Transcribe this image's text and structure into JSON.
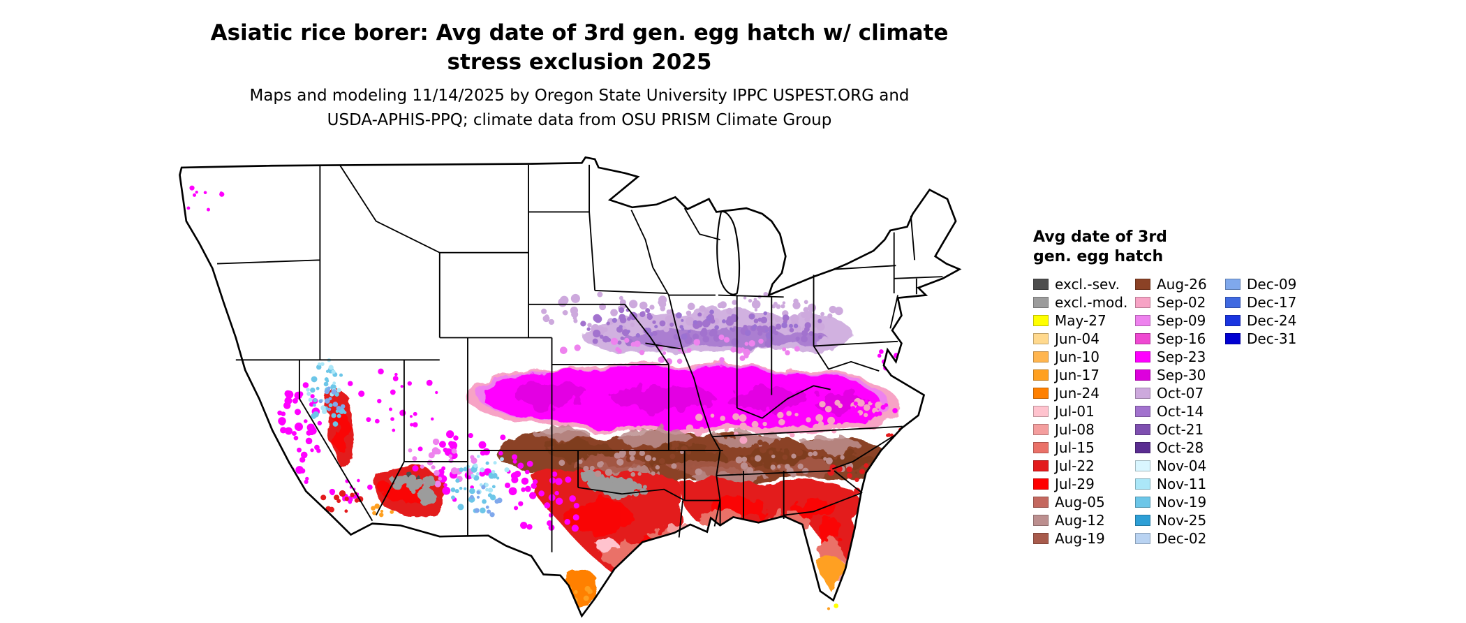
{
  "header": {
    "title_line1": "Asiatic rice borer: Avg date of 3rd gen. egg hatch w/ climate",
    "title_line2": "stress exclusion 2025",
    "subtitle_line1": "Maps and modeling 11/14/2025 by Oregon State University IPPC USPEST.ORG and",
    "subtitle_line2": "USDA-APHIS-PPQ; climate data from OSU PRISM Climate Group"
  },
  "legend": {
    "title_line1": "Avg date of 3rd",
    "title_line2": "gen. egg hatch",
    "columns": [
      {
        "items": [
          {
            "label": "excl.-sev.",
            "color": "#4D4D4D"
          },
          {
            "label": "excl.-mod.",
            "color": "#9C9C9C"
          },
          {
            "label": "May-27",
            "color": "#FFFF00"
          },
          {
            "label": "Jun-04",
            "color": "#FFD98E"
          },
          {
            "label": "Jun-10",
            "color": "#FFB54F"
          },
          {
            "label": "Jun-17",
            "color": "#FFA020"
          },
          {
            "label": "Jun-24",
            "color": "#FF8000"
          },
          {
            "label": "Jul-01",
            "color": "#FFC3CE"
          },
          {
            "label": "Jul-08",
            "color": "#F49E9E"
          },
          {
            "label": "Jul-15",
            "color": "#EA7168"
          },
          {
            "label": "Jul-22",
            "color": "#E31A1C"
          },
          {
            "label": "Jul-29",
            "color": "#FF0000"
          },
          {
            "label": "Aug-05",
            "color": "#C4685F"
          },
          {
            "label": "Aug-12",
            "color": "#BC8F8F"
          },
          {
            "label": "Aug-19",
            "color": "#A85B4C"
          }
        ]
      },
      {
        "items": [
          {
            "label": "Aug-26",
            "color": "#8B4226"
          },
          {
            "label": "Sep-02",
            "color": "#F7A3C5"
          },
          {
            "label": "Sep-09",
            "color": "#EE82EE"
          },
          {
            "label": "Sep-16",
            "color": "#EF49D2"
          },
          {
            "label": "Sep-23",
            "color": "#FF00FF"
          },
          {
            "label": "Sep-30",
            "color": "#DD00DD"
          },
          {
            "label": "Oct-07",
            "color": "#CDA9DD"
          },
          {
            "label": "Oct-14",
            "color": "#A272CE"
          },
          {
            "label": "Oct-21",
            "color": "#7E4FB0"
          },
          {
            "label": "Oct-28",
            "color": "#5A2D91"
          },
          {
            "label": "Nov-04",
            "color": "#D9F6FF"
          },
          {
            "label": "Nov-11",
            "color": "#ABE7F8"
          },
          {
            "label": "Nov-19",
            "color": "#6CC6E8"
          },
          {
            "label": "Nov-25",
            "color": "#2D9FD6"
          },
          {
            "label": "Dec-02",
            "color": "#B9D3F2"
          }
        ]
      },
      {
        "items": [
          {
            "label": "Dec-09",
            "color": "#7FA8EC"
          },
          {
            "label": "Dec-17",
            "color": "#3F69E1"
          },
          {
            "label": "Dec-24",
            "color": "#1A35E0"
          },
          {
            "label": "Dec-31",
            "color": "#0000D2"
          }
        ]
      }
    ]
  }
}
